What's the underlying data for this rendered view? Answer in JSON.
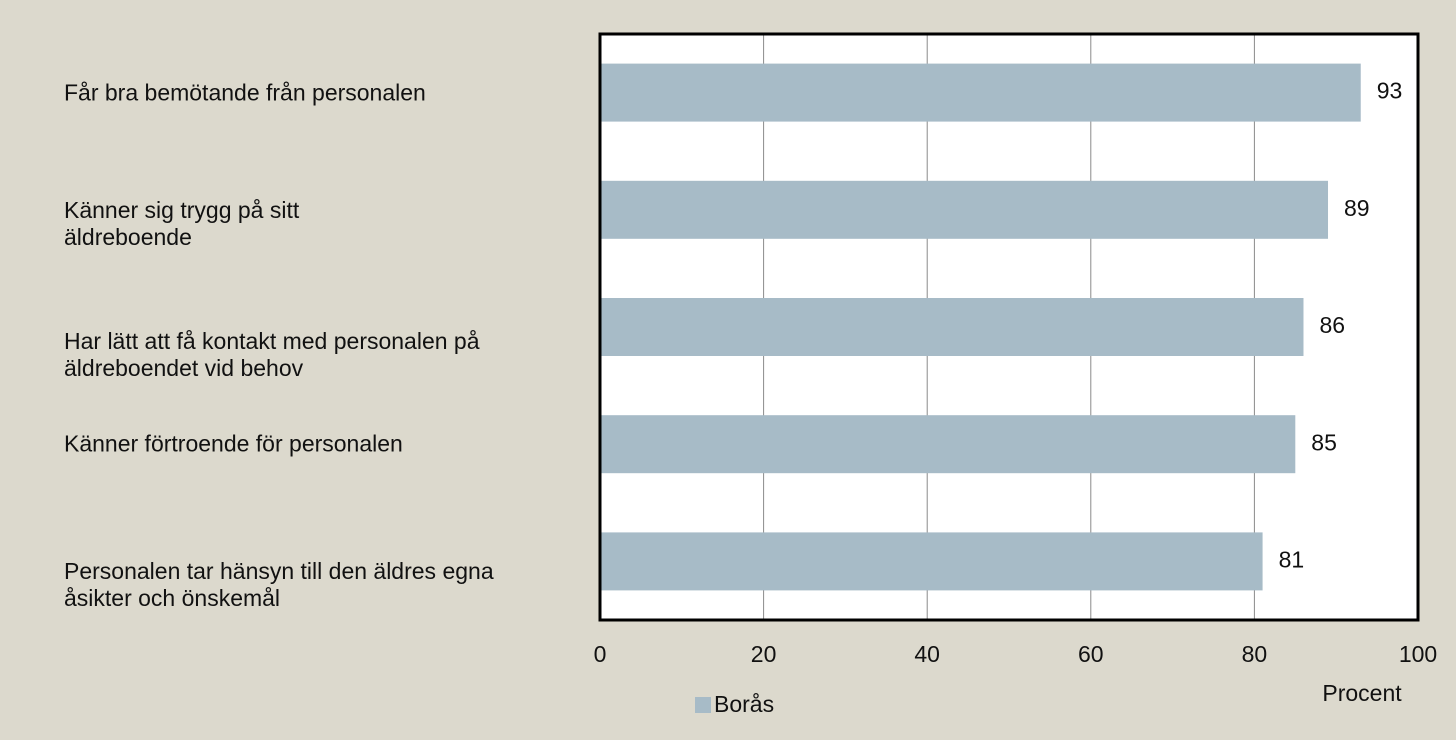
{
  "chart_data": {
    "type": "bar",
    "orientation": "horizontal",
    "categories": [
      "Får bra bemötande från personalen",
      "Känner sig trygg på sitt äldreboende",
      "Har lätt att få kontakt med personalen på äldreboendet vid behov",
      "Känner förtroende för personalen",
      "Personalen tar hänsyn till den äldres egna åsikter och önskemål"
    ],
    "series": [
      {
        "name": "Borås",
        "color": "#a7bbc7",
        "values": [
          93,
          89,
          86,
          85,
          81
        ]
      }
    ],
    "xlim": [
      0,
      100
    ],
    "xticks": [
      0,
      20,
      40,
      60,
      80,
      100
    ],
    "xlabel": "Procent",
    "grid": true,
    "legend": "bottom"
  }
}
